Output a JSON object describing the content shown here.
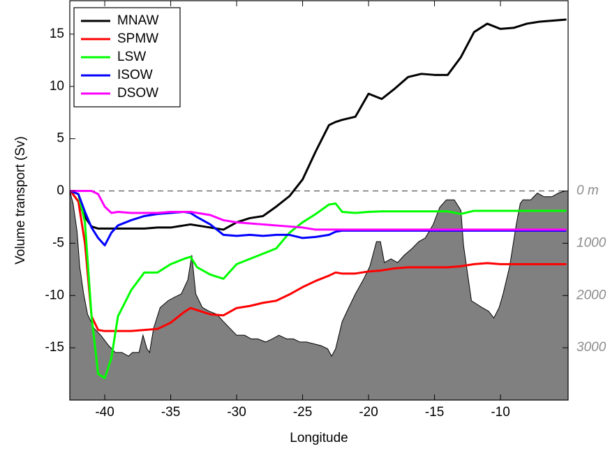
{
  "chart_data": {
    "type": "line",
    "x_label": "Longitude",
    "y_label": "Volume transport (Sv)",
    "xlim": [
      -42.65,
      -4.87
    ],
    "ylim": [
      -20,
      18.2
    ],
    "y2lim": [
      4000,
      -3640
    ],
    "xticks": [
      -40,
      -35,
      -30,
      -25,
      -20,
      -15,
      -10
    ],
    "yticks": [
      -15,
      -10,
      -5,
      0,
      5,
      10,
      15
    ],
    "y2ticks": [
      {
        "value": 0,
        "label": "0 m"
      },
      1000,
      2000,
      3000
    ],
    "reference_line": 0,
    "legend": "upper left",
    "x": [
      -42.6,
      -42,
      -41.5,
      -41,
      -40.5,
      -40,
      -39.5,
      -39,
      -38,
      -37,
      -36,
      -35,
      -34,
      -33.5,
      -33,
      -32,
      -31,
      -30,
      -29,
      -28,
      -27,
      -26,
      -25,
      -24,
      -23,
      -22.5,
      -22,
      -21,
      -20,
      -19,
      -18,
      -17,
      -16,
      -15,
      -14,
      -13,
      -12,
      -11,
      -10,
      -9,
      -8,
      -7,
      -6,
      -5
    ],
    "series": [
      {
        "name": "MNAW",
        "color": "#000000",
        "values": [
          0,
          -1,
          -2.5,
          -3.4,
          -3.6,
          -3.6,
          -3.6,
          -3.6,
          -3.6,
          -3.6,
          -3.5,
          -3.5,
          -3.3,
          -3.2,
          -3.3,
          -3.5,
          -3.7,
          -3,
          -2.6,
          -2.4,
          -1.5,
          -0.5,
          1.1,
          3.8,
          6.3,
          6.6,
          6.8,
          7.1,
          9.3,
          8.8,
          9.8,
          10.9,
          11.2,
          11.1,
          11.1,
          12.8,
          15.2,
          16,
          15.5,
          15.6,
          16,
          16.2,
          16.3,
          16.4
        ]
      },
      {
        "name": "SPMW",
        "color": "#ff0000",
        "values": [
          0,
          -1,
          -5,
          -12,
          -13.3,
          -13.4,
          -13.4,
          -13.4,
          -13.4,
          -13.3,
          -13.2,
          -12.6,
          -11.6,
          -11.2,
          -11.4,
          -11.8,
          -11.9,
          -11.2,
          -11,
          -10.7,
          -10.5,
          -9.9,
          -9.2,
          -8.6,
          -8.1,
          -7.8,
          -7.9,
          -7.9,
          -7.7,
          -7.6,
          -7.4,
          -7.3,
          -7.3,
          -7.3,
          -7.3,
          -7.2,
          -7,
          -6.9,
          -7,
          -7,
          -7,
          -7,
          -7,
          -7
        ]
      },
      {
        "name": "LSW",
        "color": "#00ff00",
        "values": [
          0,
          -0.3,
          -3,
          -12,
          -17.5,
          -17.9,
          -16,
          -12,
          -9.5,
          -7.8,
          -7.8,
          -7,
          -6.5,
          -6.3,
          -7.3,
          -8,
          -8.4,
          -7,
          -6.5,
          -6,
          -5.5,
          -4,
          -3,
          -2.2,
          -1.3,
          -1.2,
          -2,
          -2.1,
          -2,
          -1.95,
          -1.95,
          -1.95,
          -1.95,
          -1.95,
          -1.95,
          -2.2,
          -1.9,
          -1.9,
          -1.9,
          -1.9,
          -1.9,
          -1.9,
          -1.9,
          -1.9
        ]
      },
      {
        "name": "ISOW",
        "color": "#0000ff",
        "values": [
          0,
          -0.3,
          -2,
          -3.5,
          -4.5,
          -5.2,
          -4,
          -3.3,
          -2.8,
          -2.4,
          -2.2,
          -2.1,
          -2,
          -2.1,
          -2.5,
          -3.2,
          -4.2,
          -4.3,
          -4.2,
          -4.3,
          -4.2,
          -4.2,
          -4.5,
          -4.4,
          -4.2,
          -3.9,
          -3.8,
          -3.8,
          -3.8,
          -3.8,
          -3.8,
          -3.8,
          -3.8,
          -3.8,
          -3.8,
          -3.8,
          -3.8,
          -3.8,
          -3.8,
          -3.8,
          -3.8,
          -3.8,
          -3.8,
          -3.8
        ]
      },
      {
        "name": "DSOW",
        "color": "#ff00ff",
        "values": [
          0,
          0,
          0,
          0,
          -0.3,
          -1.5,
          -2.1,
          -2,
          -2.1,
          -2.1,
          -2.1,
          -2,
          -2,
          -2,
          -2.1,
          -2.3,
          -2.8,
          -3,
          -3.1,
          -3.2,
          -3.3,
          -3.4,
          -3.5,
          -3.7,
          -3.7,
          -3.7,
          -3.7,
          -3.7,
          -3.7,
          -3.7,
          -3.7,
          -3.7,
          -3.7,
          -3.7,
          -3.7,
          -3.7,
          -3.7,
          -3.7,
          -3.7,
          -3.7,
          -3.7,
          -3.7,
          -3.7,
          -3.7
        ]
      }
    ],
    "bathymetry": {
      "axis": "y2",
      "color": "#808080",
      "x": [
        -42.65,
        -42.4,
        -42.1,
        -41.9,
        -41.6,
        -41.3,
        -40.8,
        -40.3,
        -39.7,
        -39.2,
        -38.7,
        -38.2,
        -37.9,
        -37.4,
        -37.1,
        -36.8,
        -36.6,
        -36.3,
        -35.8,
        -35.2,
        -34.7,
        -34.2,
        -33.7,
        -33.4,
        -33.1,
        -32.6,
        -32.1,
        -31.5,
        -31,
        -30.5,
        -30,
        -29.4,
        -28.9,
        -28.4,
        -27.8,
        -27.3,
        -26.8,
        -26.2,
        -25.7,
        -25.2,
        -24.7,
        -23.6,
        -23.1,
        -22.8,
        -22.5,
        -22,
        -21.5,
        -21,
        -20.4,
        -19.9,
        -19.4,
        -19.1,
        -18.8,
        -18.3,
        -17.8,
        -17.3,
        -16.7,
        -16.2,
        -15.7,
        -15.1,
        -14.6,
        -14.1,
        -13.5,
        -13,
        -12.8,
        -12.2,
        -11.4,
        -10.9,
        -10.5,
        -10.1,
        -9.8,
        -9.3,
        -8.8,
        -8.5,
        -8.3,
        -7.7,
        -7.2,
        -6.7,
        -6.1,
        -5.6,
        -5.1,
        -4.87
      ],
      "values": [
        0,
        240,
        770,
        1440,
        1970,
        2360,
        2630,
        2760,
        2960,
        3090,
        3090,
        3160,
        3090,
        3090,
        2760,
        3020,
        3090,
        2630,
        2230,
        2100,
        2030,
        1970,
        1700,
        1230,
        1970,
        2230,
        2300,
        2360,
        2500,
        2630,
        2760,
        2760,
        2830,
        2830,
        2890,
        2830,
        2760,
        2830,
        2830,
        2890,
        2890,
        2960,
        3020,
        3160,
        3020,
        2500,
        2230,
        1970,
        1700,
        1440,
        970,
        970,
        1370,
        1300,
        1370,
        1230,
        1100,
        970,
        900,
        640,
        310,
        170,
        170,
        370,
        1040,
        2100,
        2230,
        2300,
        2430,
        2230,
        1970,
        1440,
        640,
        240,
        170,
        170,
        40,
        110,
        110,
        40,
        0,
        0
      ]
    }
  }
}
